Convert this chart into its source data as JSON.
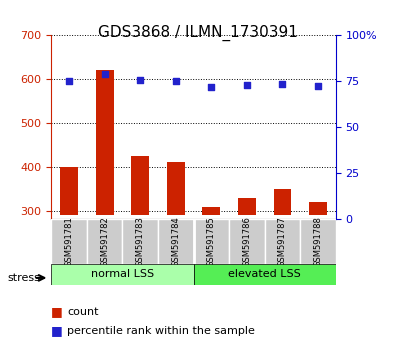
{
  "title": "GDS3868 / ILMN_1730391",
  "samples": [
    "GSM591781",
    "GSM591782",
    "GSM591783",
    "GSM591784",
    "GSM591785",
    "GSM591786",
    "GSM591787",
    "GSM591788"
  ],
  "counts": [
    400,
    622,
    425,
    412,
    308,
    330,
    350,
    320
  ],
  "percentiles": [
    75,
    79,
    76,
    75,
    72,
    73,
    73.5,
    72.5
  ],
  "groups": [
    {
      "label": "normal LSS",
      "indices": [
        0,
        1,
        2,
        3
      ],
      "color": "#aaffaa"
    },
    {
      "label": "elevated LSS",
      "indices": [
        4,
        5,
        6,
        7
      ],
      "color": "#55ee55"
    }
  ],
  "stress_label": "stress",
  "ylim_left": [
    280,
    700
  ],
  "ylim_right": [
    0,
    100
  ],
  "yticks_left": [
    300,
    400,
    500,
    600,
    700
  ],
  "yticks_right": [
    0,
    25,
    50,
    75,
    100
  ],
  "bar_color": "#cc2200",
  "dot_color": "#2222cc",
  "bar_bottom": 290,
  "background_color": "#ffffff",
  "grid_color": "#000000",
  "group_row_color": "#cccccc",
  "right_yaxis_color": "#0000cc",
  "left_yaxis_color": "#cc2200"
}
